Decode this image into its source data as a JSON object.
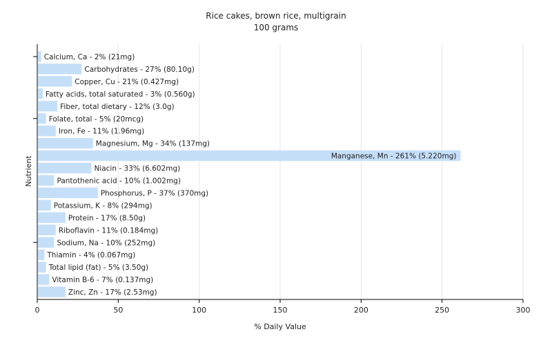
{
  "chart_data": {
    "type": "bar",
    "orientation": "horizontal",
    "title": "Rice cakes, brown rice, multigrain",
    "subtitle": "100 grams",
    "xlabel": "% Daily Value",
    "ylabel": "Nutrient",
    "xlim": [
      0,
      300
    ],
    "xticks": [
      0,
      50,
      100,
      150,
      200,
      250,
      300
    ],
    "grid": true,
    "bar_color": "#c6dff9",
    "categories": [
      "Calcium, Ca",
      "Carbohydrates",
      "Copper, Cu",
      "Fatty acids, total saturated",
      "Fiber, total dietary",
      "Folate, total",
      "Iron, Fe",
      "Magnesium, Mg",
      "Manganese, Mn",
      "Niacin",
      "Pantothenic acid",
      "Phosphorus, P",
      "Potassium, K",
      "Protein",
      "Riboflavin",
      "Sodium, Na",
      "Thiamin",
      "Total lipid (fat)",
      "Vitamin B-6",
      "Zinc, Zn"
    ],
    "values": [
      2,
      27,
      21,
      3,
      12,
      5,
      11,
      34,
      261,
      33,
      10,
      37,
      8,
      17,
      11,
      10,
      4,
      5,
      7,
      17
    ],
    "labels": [
      "Calcium, Ca - 2% (21mg)",
      "Carbohydrates - 27% (80.10g)",
      "Copper, Cu - 21% (0.427mg)",
      "Fatty acids, total saturated - 3% (0.560g)",
      "Fiber, total dietary - 12% (3.0g)",
      "Folate, total - 5% (20mcg)",
      "Iron, Fe - 11% (1.96mg)",
      "Magnesium, Mg - 34% (137mg)",
      "Manganese, Mn - 261% (5.220mg)",
      "Niacin - 33% (6.602mg)",
      "Pantothenic acid - 10% (1.002mg)",
      "Phosphorus, P - 37% (370mg)",
      "Potassium, K - 8% (294mg)",
      "Protein - 17% (8.50g)",
      "Riboflavin - 11% (0.184mg)",
      "Sodium, Na - 10% (252mg)",
      "Thiamin - 4% (0.067mg)",
      "Total lipid (fat) - 5% (3.50g)",
      "Vitamin B-6 - 7% (0.137mg)",
      "Zinc, Zn - 17% (2.53mg)"
    ]
  }
}
